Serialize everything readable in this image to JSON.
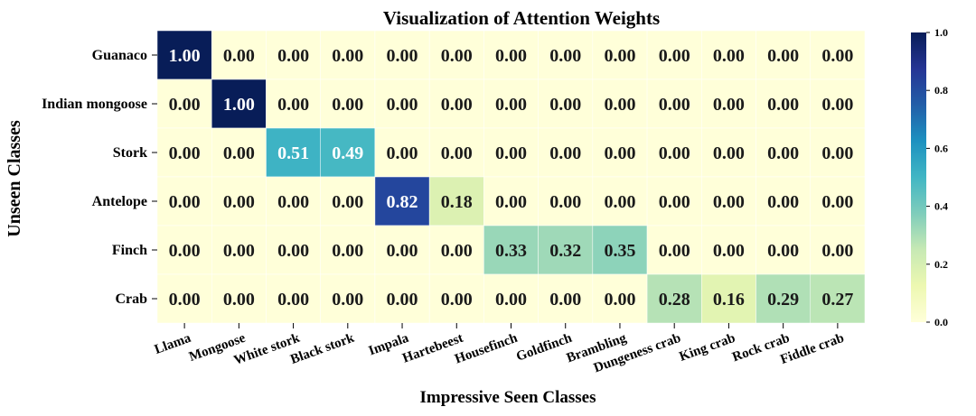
{
  "chart_data": {
    "type": "heatmap",
    "title": "Visualization of Attention Weights",
    "xlabel": "Impressive Seen Classes",
    "ylabel": "Unseen Classes",
    "x_categories": [
      "Llama",
      "Mongoose",
      "White stork",
      "Black stork",
      "Impala",
      "Hartebeest",
      "Housefinch",
      "Goldfinch",
      "Brambling",
      "Dungeness crab",
      "King crab",
      "Rock crab",
      "Fiddle crab"
    ],
    "y_categories": [
      "Guanaco",
      "Indian mongoose",
      "Stork",
      "Antelope",
      "Finch",
      "Crab"
    ],
    "values": [
      [
        1.0,
        0.0,
        0.0,
        0.0,
        0.0,
        0.0,
        0.0,
        0.0,
        0.0,
        0.0,
        0.0,
        0.0,
        0.0
      ],
      [
        0.0,
        1.0,
        0.0,
        0.0,
        0.0,
        0.0,
        0.0,
        0.0,
        0.0,
        0.0,
        0.0,
        0.0,
        0.0
      ],
      [
        0.0,
        0.0,
        0.51,
        0.49,
        0.0,
        0.0,
        0.0,
        0.0,
        0.0,
        0.0,
        0.0,
        0.0,
        0.0
      ],
      [
        0.0,
        0.0,
        0.0,
        0.0,
        0.82,
        0.18,
        0.0,
        0.0,
        0.0,
        0.0,
        0.0,
        0.0,
        0.0
      ],
      [
        0.0,
        0.0,
        0.0,
        0.0,
        0.0,
        0.0,
        0.33,
        0.32,
        0.35,
        0.0,
        0.0,
        0.0,
        0.0
      ],
      [
        0.0,
        0.0,
        0.0,
        0.0,
        0.0,
        0.0,
        0.0,
        0.0,
        0.0,
        0.28,
        0.16,
        0.29,
        0.27
      ]
    ],
    "colorbar": {
      "range": [
        0.0,
        1.0
      ],
      "ticks": [
        "0.0",
        "0.2",
        "0.4",
        "0.6",
        "0.8",
        "1.0"
      ],
      "colormap": "YlGnBu",
      "colors": [
        "#ffffd9",
        "#edf8b1",
        "#c7e9b4",
        "#7fcdbb",
        "#41b6c4",
        "#1d91c0",
        "#225ea8",
        "#253494",
        "#081d58"
      ]
    },
    "annotation_format": "two decimals",
    "grid": false
  }
}
